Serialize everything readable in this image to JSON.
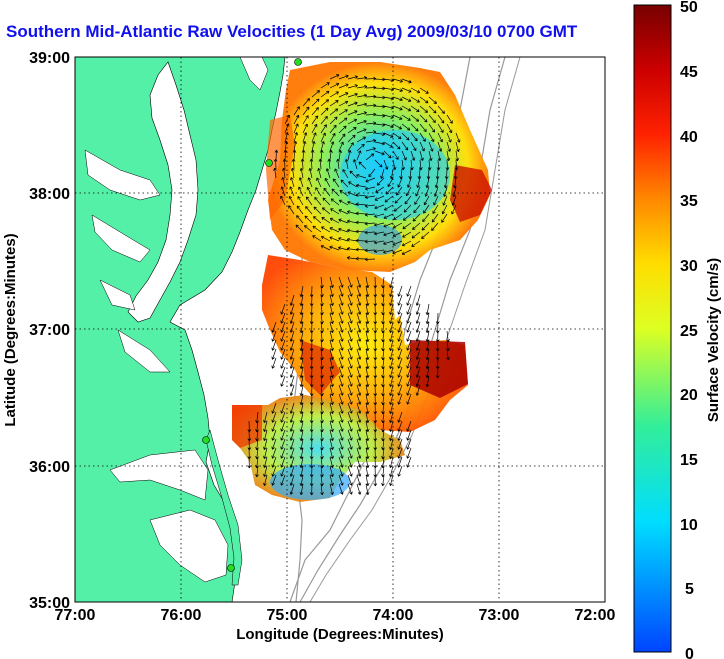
{
  "title": "Southern Mid-Atlantic Raw Velocities (1 Day Avg) 2009/03/10 0700 GMT",
  "xaxis": {
    "label": "Longitude (Degrees:Minutes)",
    "ticks": [
      "77:00",
      "76:00",
      "75:00",
      "74:00",
      "73:00",
      "72:00"
    ]
  },
  "yaxis": {
    "label": "Latitude (Degrees:Minutes)",
    "ticks": [
      "39:00",
      "38:00",
      "37:00",
      "36:00",
      "35:00"
    ]
  },
  "colorbar": {
    "label": "Surface Velocity (cm/s)",
    "ticks": [
      "50",
      "45",
      "40",
      "35",
      "30",
      "25",
      "20",
      "15",
      "10",
      "5",
      "0"
    ],
    "min": 0,
    "max": 50
  },
  "colors": {
    "land": "#55f0a8",
    "title": "#1010ee",
    "station": "#22dd22"
  }
}
